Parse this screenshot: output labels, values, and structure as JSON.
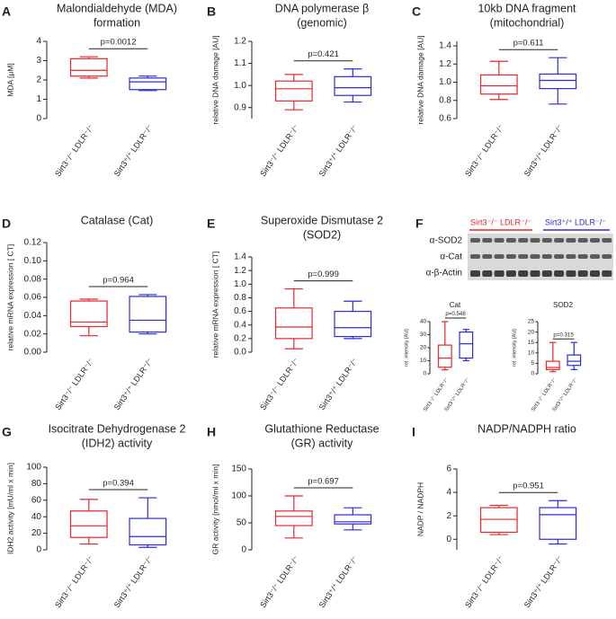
{
  "chart_data": [
    {
      "type": "box",
      "panel": "A",
      "title": [
        "Malondialdehyde (MDA)",
        "formation"
      ],
      "ylabel": "MDA [μM]",
      "categories": [
        "Sirt3⁻/⁻ LDLR⁻/⁻",
        "Sirt3⁺/⁺ LDLR⁻/⁻"
      ],
      "boxes": [
        {
          "min": 2.1,
          "q1": 2.2,
          "median": 2.5,
          "q3": 3.1,
          "max": 3.2,
          "color": "#e8262b"
        },
        {
          "min": 1.45,
          "q1": 1.5,
          "median": 1.9,
          "q3": 2.1,
          "max": 2.2,
          "color": "#2b2bd9"
        }
      ],
      "p_value": "p=0.0012",
      "ylim": [
        0,
        4
      ],
      "yticks": [
        0,
        1,
        2,
        3,
        4
      ]
    },
    {
      "type": "box",
      "panel": "B",
      "title": [
        "DNA polymerase β",
        "(genomic)"
      ],
      "ylabel": "relative DNA damage [AU]",
      "categories": [
        "Sirt3⁻/⁻ LDLR⁻/⁻",
        "Sirt3⁺/⁺ LDLR⁻/⁻"
      ],
      "boxes": [
        {
          "min": 0.89,
          "q1": 0.93,
          "median": 0.985,
          "q3": 1.02,
          "max": 1.05,
          "color": "#e8262b"
        },
        {
          "min": 0.925,
          "q1": 0.955,
          "median": 0.99,
          "q3": 1.04,
          "max": 1.075,
          "color": "#2b2bd9"
        }
      ],
      "p_value": "p=0.421",
      "ylim": [
        0.85,
        1.2
      ],
      "yticks": [
        0.9,
        {
          "value": 1,
          "label": "1.0"
        },
        1.1,
        1.2
      ]
    },
    {
      "type": "box",
      "panel": "C",
      "title": [
        "10kb DNA fragment",
        "(mitochondrial)"
      ],
      "ylabel": "relative DNA damage [AU]",
      "categories": [
        "Sirt3⁻/⁻ LDLR⁻/⁻",
        "Sirt3⁺/⁺ LDLR⁻/⁻"
      ],
      "boxes": [
        {
          "min": 0.81,
          "q1": 0.87,
          "median": 0.96,
          "q3": 1.08,
          "max": 1.23,
          "color": "#e8262b"
        },
        {
          "min": 0.76,
          "q1": 0.93,
          "median": 1.02,
          "q3": 1.09,
          "max": 1.27,
          "color": "#2b2bd9"
        }
      ],
      "p_value": "p=0.611",
      "ylim": [
        0.6,
        1.45
      ],
      "yticks": [
        0.6,
        0.8,
        {
          "value": 1,
          "label": "1.0"
        },
        1.2,
        1.4
      ]
    },
    {
      "type": "box",
      "panel": "D",
      "title": [
        "Catalase (Cat)"
      ],
      "ylabel": "relative mRNA expression [ CT]",
      "categories": [
        "Sirt3⁻/⁻ LDLR⁻/⁻",
        "Sirt3⁺/⁺ LDLR⁻/⁻"
      ],
      "boxes": [
        {
          "min": 0.018,
          "q1": 0.028,
          "median": 0.033,
          "q3": 0.056,
          "max": 0.058,
          "color": "#e8262b"
        },
        {
          "min": 0.02,
          "q1": 0.022,
          "median": 0.035,
          "q3": 0.061,
          "max": 0.063,
          "color": "#2b2bd9"
        }
      ],
      "p_value": "p=0.964",
      "ylim": [
        0,
        0.12
      ],
      "yticks": [
        {
          "value": 0,
          "label": "0.00"
        },
        {
          "value": 0.02,
          "label": "0.02"
        },
        {
          "value": 0.04,
          "label": "0.04"
        },
        {
          "value": 0.06,
          "label": "0.06"
        },
        {
          "value": 0.08,
          "label": "0.08"
        },
        {
          "value": 0.1,
          "label": "0.10"
        },
        {
          "value": 0.12,
          "label": "0.12"
        }
      ]
    },
    {
      "type": "box",
      "panel": "E",
      "title": [
        "Superoxide Dismutase 2",
        "(SOD2)"
      ],
      "ylabel": "relative mRNA expression [ CT]",
      "categories": [
        "Sirt3⁻/⁻ LDLR⁻/⁻",
        "Sirt3⁺/⁺ LDLR⁻/⁻"
      ],
      "boxes": [
        {
          "min": 0.05,
          "q1": 0.2,
          "median": 0.37,
          "q3": 0.65,
          "max": 0.93,
          "color": "#e8262b"
        },
        {
          "min": 0.2,
          "q1": 0.23,
          "median": 0.36,
          "q3": 0.6,
          "max": 0.75,
          "color": "#2b2bd9"
        }
      ],
      "p_value": "p=0.999",
      "ylim": [
        0,
        1.4
      ],
      "yticks": [
        {
          "value": 0,
          "label": "0.0"
        },
        0.2,
        0.4,
        0.6,
        0.8,
        {
          "value": 1,
          "label": "1.0"
        },
        1.2,
        1.4
      ]
    },
    {
      "type": "box",
      "title": [
        "Cat"
      ],
      "ylabel": "rel. intensity [AU]",
      "categories": [
        "Sirt3⁻/⁻ LDLR⁻/⁻",
        "Sirt3⁺/⁺ LDLR⁻/⁻"
      ],
      "boxes": [
        {
          "min": 3,
          "q1": 5,
          "median": 12,
          "q3": 22,
          "max": 40,
          "color": "#e8262b"
        },
        {
          "min": 10,
          "q1": 12,
          "median": 23,
          "q3": 32,
          "max": 34,
          "color": "#2b2bd9"
        }
      ],
      "p_value": "p=0.548",
      "ylim": [
        0,
        40
      ],
      "yticks": [
        0,
        10,
        20,
        30,
        40
      ]
    },
    {
      "type": "box",
      "title": [
        "SOD2"
      ],
      "ylabel": "rel. intensity [AU]",
      "categories": [
        "Sirt3⁻/⁻ LDLR⁻/⁻",
        "Sirt3⁺/⁺ LDLR⁻/⁻"
      ],
      "boxes": [
        {
          "min": 1,
          "q1": 2,
          "median": 3,
          "q3": 6,
          "max": 15,
          "color": "#e8262b"
        },
        {
          "min": 2,
          "q1": 4,
          "median": 6,
          "q3": 9,
          "max": 15,
          "color": "#2b2bd9"
        }
      ],
      "p_value": "p=0.315",
      "ylim": [
        0,
        25
      ],
      "yticks": [
        0,
        5,
        10,
        15,
        20,
        25
      ]
    },
    {
      "type": "box",
      "panel": "G",
      "title": [
        "Isocitrate Dehydrogenase 2",
        "(IDH2) activity"
      ],
      "ylabel": "IDH2 activity [mU/ml x min]",
      "categories": [
        "Sirt3⁻/⁻ LDLR⁻/⁻",
        "Sirt3⁺/⁺ LDLR⁻/⁻"
      ],
      "boxes": [
        {
          "min": 7,
          "q1": 15,
          "median": 29,
          "q3": 47,
          "max": 61,
          "color": "#e8262b"
        },
        {
          "min": 3,
          "q1": 6,
          "median": 16,
          "q3": 38,
          "max": 63,
          "color": "#2b2bd9"
        }
      ],
      "p_value": "p=0.394",
      "ylim": [
        0,
        100
      ],
      "yticks": [
        0,
        20,
        40,
        60,
        80,
        100
      ]
    },
    {
      "type": "box",
      "panel": "H",
      "title": [
        "Glutathione Reductase",
        "(GR) activity"
      ],
      "ylabel": "GR activity [nmol/ml x min]",
      "categories": [
        "Sirt3⁻/⁻ LDLR⁻/⁻",
        "Sirt3⁺/⁺ LDLR⁻/⁻"
      ],
      "boxes": [
        {
          "min": 22,
          "q1": 45,
          "median": 62,
          "q3": 72,
          "max": 100,
          "color": "#e8262b"
        },
        {
          "min": 37,
          "q1": 48,
          "median": 52,
          "q3": 65,
          "max": 78,
          "color": "#2b2bd9"
        }
      ],
      "p_value": "p=0.697",
      "ylim": [
        0,
        150
      ],
      "yticks": [
        0,
        50,
        100,
        150
      ]
    },
    {
      "type": "box",
      "panel": "I",
      "title": [
        "NADP/NADPH ratio"
      ],
      "ylabel": "NADP / NADPH",
      "categories": [
        "Sirt3⁻/⁻ LDLR⁻/⁻",
        "Sirt3⁺/⁺ LDLR⁻/⁻"
      ],
      "boxes": [
        {
          "min": 0.4,
          "q1": 0.6,
          "median": 1.7,
          "q3": 2.7,
          "max": 2.9,
          "color": "#e8262b"
        },
        {
          "min": -0.4,
          "q1": 0,
          "median": 2.1,
          "q3": 2.7,
          "max": 3.3,
          "color": "#2b2bd9"
        }
      ],
      "p_value": "p=0.951",
      "ylim": [
        -0.9,
        6
      ],
      "yticks": [
        0,
        2,
        4,
        6
      ]
    }
  ],
  "blot": {
    "panel": "F",
    "groups": [
      "Sirt3⁻/⁻ LDLR⁻/⁻",
      "Sirt3⁺/⁺ LDLR⁻/⁻"
    ],
    "rows": [
      "α-SOD2",
      "α-Cat",
      "α-β-Actin"
    ]
  }
}
